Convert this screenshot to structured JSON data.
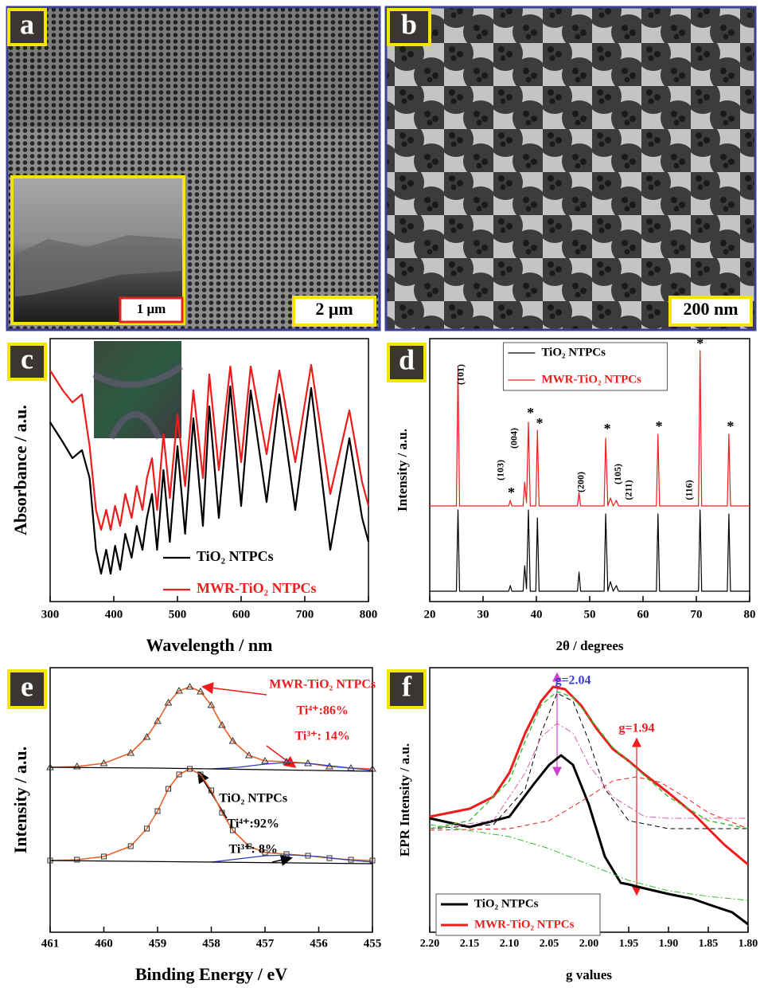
{
  "figure": {
    "panels": [
      {
        "label": "a",
        "scale_bar": "2 μm",
        "inset_scale_bar": "1 μm"
      },
      {
        "label": "b",
        "scale_bar": "200 nm"
      }
    ]
  },
  "chart_data": [
    {
      "label": "c",
      "type": "line",
      "xlabel": "Wavelength / nm",
      "ylabel": "Absorbance / a.u.",
      "xlim": [
        300,
        800
      ],
      "xticks": [
        300,
        400,
        500,
        600,
        700,
        800
      ],
      "ylim": [
        0,
        330
      ],
      "legend": "lower center",
      "legend_frame": false,
      "x": [
        300,
        320,
        335,
        350,
        362,
        372,
        380,
        388,
        395,
        402,
        410,
        418,
        428,
        436,
        445,
        452,
        460,
        468,
        478,
        488,
        500,
        512,
        525,
        540,
        550,
        565,
        583,
        600,
        615,
        640,
        660,
        685,
        710,
        740,
        770,
        790,
        800
      ],
      "series": [
        {
          "name": "TiO₂ NTPCs",
          "color": "#000000",
          "width": 2.2,
          "values": [
            225,
            200,
            180,
            190,
            155,
            65,
            35,
            65,
            35,
            70,
            40,
            85,
            55,
            95,
            65,
            105,
            135,
            65,
            165,
            75,
            195,
            85,
            230,
            95,
            245,
            105,
            270,
            120,
            265,
            125,
            260,
            115,
            268,
            65,
            205,
            105,
            75
          ]
        },
        {
          "name": "MWR-TiO₂ NTPCs",
          "color": "#ee1c1c",
          "width": 2.2,
          "values": [
            290,
            265,
            250,
            260,
            195,
            115,
            90,
            115,
            90,
            120,
            95,
            135,
            105,
            145,
            115,
            155,
            180,
            115,
            210,
            130,
            235,
            145,
            265,
            155,
            285,
            165,
            295,
            175,
            295,
            185,
            290,
            175,
            297,
            135,
            240,
            150,
            120
          ]
        }
      ]
    },
    {
      "label": "d",
      "type": "line",
      "xlabel": "2θ / degrees",
      "ylabel": "Intensity / a.u.",
      "xlim": [
        20,
        80
      ],
      "xticks": [
        20,
        30,
        40,
        50,
        60,
        70,
        80
      ],
      "ylim": [
        0,
        330
      ],
      "legend": "upper center",
      "legend_frame": true,
      "x": [
        20,
        25.0,
        25.3,
        25.6,
        34.8,
        35.1,
        35.4,
        37.5,
        37.8,
        38.15,
        38.5,
        38.85,
        39.9,
        40.2,
        40.5,
        47.7,
        48.0,
        48.3,
        52.7,
        53.0,
        53.4,
        53.9,
        54.4,
        55.0,
        55.4,
        62.5,
        62.8,
        63.1,
        70.4,
        70.7,
        71.0,
        75.8,
        76.1,
        76.4,
        80
      ],
      "series": [
        {
          "name": "TiO₂ NTPCs",
          "color": "#000000",
          "width": 1.2,
          "values": [
            13,
            13,
            115,
            13,
            13,
            20,
            13,
            13,
            45,
            16,
            115,
            13,
            13,
            105,
            13,
            13,
            37,
            13,
            13,
            110,
            13,
            25,
            13,
            20,
            13,
            13,
            110,
            13,
            13,
            115,
            13,
            13,
            110,
            13,
            13
          ]
        },
        {
          "name": "MWR-TiO₂ NTPCs",
          "color": "#ee1c1c",
          "width": 1.2,
          "values": [
            120,
            120,
            295,
            120,
            120,
            127,
            120,
            120,
            150,
            124,
            225,
            120,
            120,
            215,
            120,
            120,
            137,
            120,
            120,
            205,
            120,
            130,
            120,
            127,
            120,
            120,
            210,
            120,
            120,
            315,
            120,
            120,
            210,
            120,
            120
          ]
        }
      ],
      "annotations": [
        {
          "text": "(101)",
          "x": 25.9,
          "y": 285,
          "rotated": true
        },
        {
          "text": "(103)",
          "x": 33.4,
          "y": 165,
          "rotated": true
        },
        {
          "text": "(004)",
          "x": 35.9,
          "y": 205,
          "rotated": true
        },
        {
          "text": "(200)",
          "x": 48.5,
          "y": 150,
          "rotated": true
        },
        {
          "text": "(105)",
          "x": 55.4,
          "y": 160,
          "rotated": true
        },
        {
          "text": "(211)",
          "x": 57.4,
          "y": 140,
          "rotated": true
        },
        {
          "text": "(116)",
          "x": 68.8,
          "y": 140,
          "rotated": true
        },
        {
          "text": "*",
          "x": 35.3,
          "y": 135
        },
        {
          "text": "*",
          "x": 38.9,
          "y": 235
        },
        {
          "text": "*",
          "x": 40.6,
          "y": 222
        },
        {
          "text": "*",
          "x": 53.3,
          "y": 215
        },
        {
          "text": "*",
          "x": 63.0,
          "y": 218
        },
        {
          "text": "*",
          "x": 70.7,
          "y": 322
        },
        {
          "text": "*",
          "x": 76.4,
          "y": 218
        }
      ]
    },
    {
      "label": "e",
      "type": "line",
      "xlabel": "Binding Energy / eV",
      "ylabel": "Intensity / a.u.",
      "xlim": [
        461,
        455
      ],
      "xticks": [
        461,
        460,
        459,
        458,
        457,
        456,
        455
      ],
      "ylim": [
        0,
        332
      ],
      "series": [
        {
          "color": "#e8622a",
          "width": 1.6,
          "marker": "triangle",
          "marker_color": "#333333",
          "x": [
            461,
            460.5,
            460,
            459.5,
            459.2,
            459,
            458.8,
            458.6,
            458.4,
            458.2,
            458,
            457.8,
            457.6,
            457.3,
            457,
            456.6,
            456.2,
            455.8,
            455.4,
            455
          ],
          "values": [
            207,
            208,
            212,
            225,
            245,
            265,
            288,
            303,
            308,
            302,
            285,
            260,
            240,
            222,
            215,
            214,
            212,
            208,
            206,
            205
          ]
        },
        {
          "color": "#2a3fbf",
          "width": 1.2,
          "x": [
            458,
            457.5,
            457,
            456.6,
            456.2,
            455.8,
            455.4,
            455
          ],
          "values": [
            205,
            207,
            211,
            213,
            212,
            209,
            206,
            203
          ]
        },
        {
          "color": "#000000",
          "width": 1.2,
          "x": [
            461,
            459,
            458,
            457,
            456,
            455
          ],
          "values": [
            207,
            206,
            205,
            204,
            203,
            202
          ]
        },
        {
          "color": "#e8622a",
          "width": 1.6,
          "marker": "square",
          "marker_color": "#333333",
          "x": [
            461,
            460.5,
            460,
            459.5,
            459.2,
            459,
            458.8,
            458.6,
            458.4,
            458.2,
            458,
            457.8,
            457.6,
            457.3,
            457,
            456.6,
            456.2,
            455.8,
            455.4,
            455
          ],
          "values": [
            90,
            91,
            95,
            108,
            130,
            152,
            180,
            198,
            205,
            198,
            178,
            150,
            128,
            108,
            100,
            98,
            96,
            93,
            91,
            90
          ]
        },
        {
          "color": "#2a3fbf",
          "width": 1.2,
          "x": [
            458,
            457.5,
            457,
            456.5,
            456,
            455.5,
            455
          ],
          "values": [
            88,
            92,
            96,
            97,
            95,
            91,
            88
          ]
        },
        {
          "color": "#000000",
          "width": 1.2,
          "x": [
            461,
            458,
            455
          ],
          "values": [
            90,
            88,
            86
          ]
        }
      ],
      "annotations": [
        {
          "text": "MWR-TiO₂ NTPCs",
          "x": 455.93,
          "y": 310,
          "color": "#ee1c1c"
        },
        {
          "text": "Ti⁴⁺:86%",
          "x": 455.93,
          "y": 277,
          "color": "#ee1c1c"
        },
        {
          "text": "Ti³⁺: 14%",
          "x": 455.93,
          "y": 245,
          "color": "#ee1c1c"
        },
        {
          "text": "TiO₂ NTPCs",
          "x": 457.22,
          "y": 167,
          "color": "#000000"
        },
        {
          "text": "Ti⁴⁺:92%",
          "x": 457.22,
          "y": 135,
          "color": "#000000"
        },
        {
          "text": "Ti³⁺: 8%",
          "x": 457.22,
          "y": 103,
          "color": "#000000"
        }
      ]
    },
    {
      "label": "f",
      "type": "line",
      "xlabel": "g values",
      "ylabel": "EPR Intensity / a.u.",
      "xlim": [
        2.2,
        1.8
      ],
      "xticks": [
        {
          "value": 2.2,
          "label": "2.20"
        },
        2.15,
        {
          "value": 2.1,
          "label": "2.10"
        },
        2.05,
        {
          "value": 2.0,
          "label": "2.00"
        },
        1.95,
        {
          "value": 1.9,
          "label": "1.90"
        },
        1.85,
        {
          "value": 1.8,
          "label": "1.80"
        }
      ],
      "ylim": [
        0,
        332
      ],
      "legend": "lower left",
      "legend_frame": true,
      "series": [
        {
          "name": "TiO₂ NTPCs",
          "color": "#000000",
          "width": 3,
          "x": [
            2.2,
            2.15,
            2.1,
            2.07,
            2.05,
            2.035,
            2.02,
            2.0,
            1.98,
            1.96,
            1.95,
            1.93,
            1.9,
            1.87,
            1.85,
            1.82,
            1.8
          ],
          "values": [
            143,
            132,
            145,
            185,
            210,
            222,
            210,
            160,
            95,
            62,
            60,
            55,
            48,
            42,
            35,
            25,
            10
          ]
        },
        {
          "name": "MWR-TiO₂ NTPCs",
          "color": "#ee1c1c",
          "width": 3,
          "x": [
            2.2,
            2.15,
            2.12,
            2.1,
            2.08,
            2.06,
            2.045,
            2.03,
            2.01,
            1.99,
            1.97,
            1.95,
            1.93,
            1.9,
            1.87,
            1.85,
            1.83,
            1.8
          ],
          "values": [
            145,
            155,
            170,
            200,
            250,
            290,
            308,
            305,
            285,
            255,
            230,
            215,
            198,
            175,
            150,
            130,
            110,
            85
          ]
        },
        {
          "color": "#000000",
          "width": 1,
          "dash": "dashed",
          "x": [
            2.2,
            2.12,
            2.08,
            2.06,
            2.04,
            2.02,
            2.0,
            1.98,
            1.95,
            1.9,
            1.85,
            1.8
          ],
          "values": [
            130,
            135,
            180,
            250,
            300,
            290,
            240,
            180,
            140,
            130,
            130,
            130
          ]
        },
        {
          "color": "#ee1c1c",
          "width": 1,
          "dash": "dashed",
          "x": [
            2.2,
            2.1,
            2.05,
            2.0,
            1.97,
            1.94,
            1.91,
            1.88,
            1.85,
            1.8
          ],
          "values": [
            128,
            130,
            140,
            170,
            190,
            195,
            188,
            170,
            150,
            130
          ]
        },
        {
          "color": "#e05ca8",
          "width": 1,
          "dash": "dashdot",
          "x": [
            2.2,
            2.12,
            2.08,
            2.06,
            2.04,
            2.02,
            2.0,
            1.97,
            1.93,
            1.9,
            1.8
          ],
          "values": [
            130,
            140,
            200,
            245,
            262,
            250,
            210,
            170,
            145,
            143,
            143
          ]
        },
        {
          "color": "#2fbf2f",
          "width": 1,
          "dash": "dashdot",
          "x": [
            2.2,
            2.1,
            2.05,
            2.0,
            1.95,
            1.9,
            1.85,
            1.8
          ],
          "values": [
            135,
            120,
            105,
            85,
            65,
            52,
            45,
            40
          ]
        },
        {
          "color": "#2fbf2f",
          "width": 1.4,
          "dash": "dashed",
          "x": [
            2.2,
            2.15,
            2.1,
            2.08,
            2.06,
            2.04,
            2.02,
            2.0,
            1.97,
            1.94,
            1.9,
            1.85,
            1.8
          ],
          "values": [
            130,
            140,
            190,
            240,
            285,
            302,
            295,
            270,
            232,
            205,
            170,
            140,
            130
          ]
        }
      ],
      "annotations": [
        {
          "text": "g=2.04",
          "x": 2.02,
          "y": 315,
          "color": "#3a3ad0"
        },
        {
          "text": "g=1.94",
          "x": 1.94,
          "y": 255,
          "color": "#ee1c1c"
        }
      ]
    }
  ]
}
